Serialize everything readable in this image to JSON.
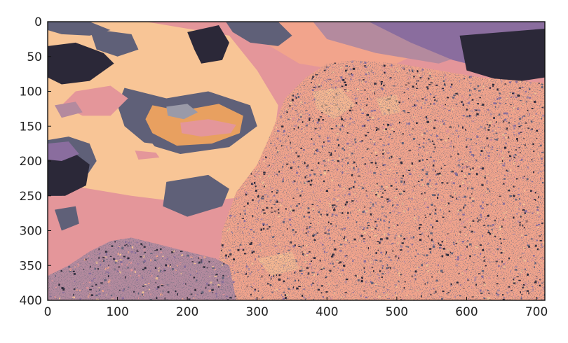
{
  "chart_data": {
    "type": "heatmap",
    "title": "",
    "xlabel": "",
    "ylabel": "",
    "xlim": [
      0,
      712
    ],
    "ylim": [
      400,
      0
    ],
    "x_ticks": [
      0,
      100,
      200,
      300,
      400,
      500,
      600,
      700
    ],
    "y_ticks": [
      0,
      50,
      100,
      150,
      200,
      250,
      300,
      350,
      400
    ],
    "x_tick_labels": [
      "0",
      "100",
      "200",
      "300",
      "400",
      "500",
      "600",
      "700"
    ],
    "y_tick_labels": [
      "0",
      "50",
      "100",
      "150",
      "200",
      "250",
      "300",
      "350",
      "400"
    ],
    "grid": false,
    "legend": "none",
    "image_content": "posterized landscape: a textured rock mountain dome to the right, smooth sky with clouds to the upper left, textured foreground along the bottom",
    "palette": {
      "dark": "#2b2838",
      "slate": "#5f6078",
      "purple": "#8a6d9e",
      "mauve": "#b48a9e",
      "pink": "#e4969a",
      "salmon": "#f2a48c",
      "peach": "#f8c596",
      "orange": "#e8a060",
      "gray": "#9a9aa8"
    }
  }
}
